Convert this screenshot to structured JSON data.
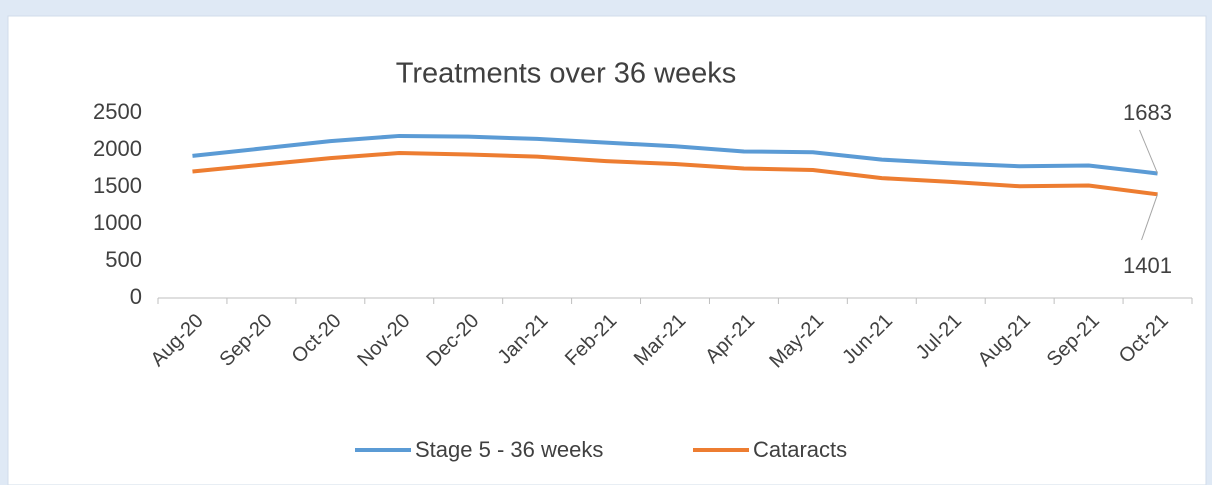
{
  "chart_data": {
    "type": "line",
    "title": "Treatments over 36 weeks",
    "categories": [
      "Aug-20",
      "Sep-20",
      "Oct-20",
      "Nov-20",
      "Dec-20",
      "Jan-21",
      "Feb-21",
      "Mar-21",
      "Apr-21",
      "May-21",
      "Jun-21",
      "Jul-21",
      "Aug-21",
      "Sep-21",
      "Oct-21"
    ],
    "series": [
      {
        "name": "Stage 5 - 36 weeks",
        "color": "#5b9bd5",
        "values": [
          1920,
          2020,
          2120,
          2190,
          2180,
          2150,
          2100,
          2050,
          1980,
          1970,
          1870,
          1820,
          1780,
          1790,
          1683
        ]
      },
      {
        "name": "Cataracts",
        "color": "#ed7d31",
        "values": [
          1710,
          1800,
          1890,
          1960,
          1940,
          1910,
          1850,
          1810,
          1750,
          1730,
          1620,
          1570,
          1510,
          1520,
          1401
        ]
      }
    ],
    "ylim": [
      0,
      2500
    ],
    "yticks": [
      0,
      500,
      1000,
      1500,
      2000,
      2500
    ],
    "grid": false,
    "legend": "bottom"
  }
}
